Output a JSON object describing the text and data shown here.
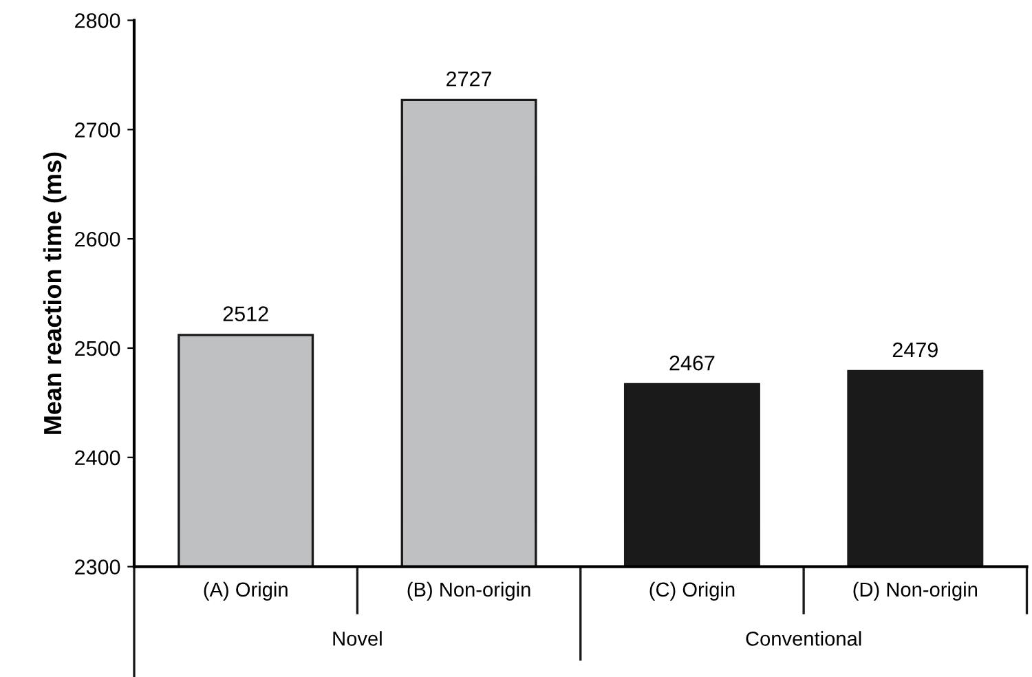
{
  "chart_data": {
    "type": "bar",
    "ylabel": "Mean reaction time (ms)",
    "categories": [
      "(A) Origin",
      "(B) Non-origin",
      "(C) Origin",
      "(D) Non-origin"
    ],
    "values": [
      2512,
      2727,
      2467,
      2479
    ],
    "colors": [
      "#bfc0c2",
      "#bfc0c2",
      "#1a1a1a",
      "#1a1a1a"
    ],
    "ylim": [
      2300,
      2800
    ],
    "yticks": [
      2300,
      2400,
      2500,
      2600,
      2700,
      2800
    ],
    "data_labels": true,
    "grid": false,
    "legend": false,
    "annotations": [
      "Novel",
      "Conventional"
    ]
  }
}
